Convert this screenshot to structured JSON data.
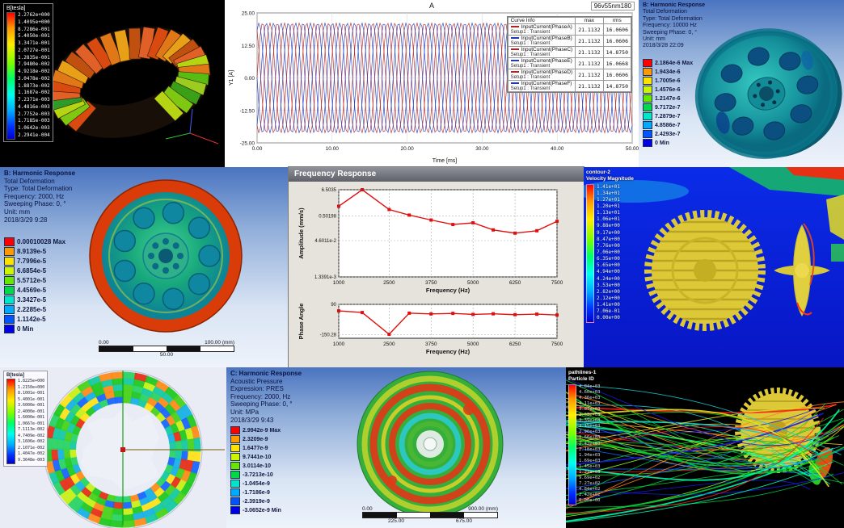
{
  "panels": {
    "torus_field": {
      "legend_title": "B[tesla]",
      "scale_values": [
        "2.2762e+000",
        "1.4095e+000",
        "8.7286e-001",
        "5.4050e-001",
        "3.3471e-001",
        "2.0727e-001",
        "1.2835e-001",
        "7.9480e-002",
        "4.9218e-002",
        "3.0478e-002",
        "1.8873e-002",
        "1.1687e-002",
        "7.2371e-003",
        "4.4816e-003",
        "2.7752e-003",
        "1.7185e-003",
        "1.0642e-003",
        "2.2941e-004"
      ]
    },
    "current_plot": {
      "title": "A",
      "corner_label": "96v55nm180",
      "ylabel": "Y1 [A]",
      "xlabel": "Time [ms]",
      "yticks": [
        "25.00",
        "12.50",
        "0.00",
        "-12.50",
        "-25.00"
      ],
      "xticks": [
        "0.00",
        "10.00",
        "20.00",
        "30.00",
        "40.00",
        "50.00"
      ],
      "legend_header": "Curve Info",
      "legend_cols": [
        "max",
        "rms"
      ],
      "series": [
        {
          "name": "InputCurrent(PhaseA)",
          "setup": "Setup1 : Transient",
          "max": "21.1132",
          "rms": "16.0606",
          "color": "#b22222"
        },
        {
          "name": "InputCurrent(PhaseB)",
          "setup": "Setup1 : Transient",
          "max": "21.1132",
          "rms": "16.0606",
          "color": "#1c39bb"
        },
        {
          "name": "InputCurrent(PhaseC)",
          "setup": "Setup1 : Transient",
          "max": "21.1132",
          "rms": "14.8750",
          "color": "#b22222"
        },
        {
          "name": "InputCurrent(PhaseE)",
          "setup": "Setup1 : Transient",
          "max": "21.1132",
          "rms": "16.0668",
          "color": "#1c39bb"
        },
        {
          "name": "InputCurrent(PhaseD)",
          "setup": "Setup1 : Transient",
          "max": "21.1132",
          "rms": "16.0606",
          "color": "#b22222"
        },
        {
          "name": "InputCurrent(PhaseF)",
          "setup": "Setup1 : Transient",
          "max": "21.1132",
          "rms": "14.8750",
          "color": "#1c39bb"
        }
      ],
      "chart_data": {
        "type": "line",
        "amplitude": 21.1132,
        "cycles": 17,
        "x_range_ms": [
          0,
          50
        ],
        "y_range": [
          -25,
          25
        ],
        "phase_step_deg": 60
      }
    },
    "harmonic_10000": {
      "header_lines": [
        "B: Harmonic Response",
        "Total Deformation",
        "Type: Total Deformation",
        "Frequency: 10000 Hz",
        "Sweeping Phase: 0, °",
        "Unit: mm",
        "2018/3/28 22:09"
      ],
      "legend": [
        {
          "color": "#ff0000",
          "label": "2.1864e-6 Max"
        },
        {
          "color": "#ff9900",
          "label": "1.9434e-6"
        },
        {
          "color": "#ffe100",
          "label": "1.7005e-6"
        },
        {
          "color": "#ccf500",
          "label": "1.4576e-6"
        },
        {
          "color": "#66e600",
          "label": "1.2147e-6"
        },
        {
          "color": "#00d948",
          "label": "9.7172e-7"
        },
        {
          "color": "#00e6c8",
          "label": "7.2879e-7"
        },
        {
          "color": "#00aaff",
          "label": "4.8586e-7"
        },
        {
          "color": "#0055ff",
          "label": "2.4293e-7"
        },
        {
          "color": "#0000e6",
          "label": "0 Min"
        }
      ]
    },
    "harmonic_2000": {
      "header_lines": [
        "B: Harmonic Response",
        "Total Deformation",
        "Type: Total Deformation",
        "Frequency: 2000, Hz",
        "Sweeping Phase: 0, °",
        "Unit: mm",
        "2018/3/29 9:28"
      ],
      "legend": [
        {
          "color": "#ff0000",
          "label": "0.00010028 Max"
        },
        {
          "color": "#ff9900",
          "label": "8.9139e-5"
        },
        {
          "color": "#ffe100",
          "label": "7.7996e-5"
        },
        {
          "color": "#ccf500",
          "label": "6.6854e-5"
        },
        {
          "color": "#66e600",
          "label": "5.5712e-5"
        },
        {
          "color": "#00d948",
          "label": "4.4569e-5"
        },
        {
          "color": "#00e6c8",
          "label": "3.3427e-5"
        },
        {
          "color": "#00aaff",
          "label": "2.2285e-5"
        },
        {
          "color": "#0055ff",
          "label": "1.1142e-5"
        },
        {
          "color": "#0000e6",
          "label": "0 Min"
        }
      ],
      "ruler": {
        "start": "0.00",
        "mid": "50.00",
        "end": "100.00 (mm)"
      }
    },
    "freq_response": {
      "window_title": "Frequency Response",
      "amplitude_chart": {
        "ylabel": "Amplitude (mm/s)",
        "xlabel": "Frequency (Hz)",
        "yticks": [
          "6.5035",
          "0.50198",
          "4.6011e-2",
          "1.3391e-3"
        ],
        "xticks": [
          "1000",
          "2500",
          "3750",
          "5000",
          "6250",
          "7500"
        ],
        "chart_data": {
          "type": "line",
          "color": "#e01010",
          "y_scale": "log",
          "x": [
            1000,
            1700,
            2500,
            3100,
            3750,
            4400,
            5000,
            5600,
            6250,
            6900,
            7500
          ],
          "y": [
            1.3,
            6.5,
            0.95,
            0.55,
            0.34,
            0.22,
            0.26,
            0.13,
            0.095,
            0.12,
            0.3
          ]
        }
      },
      "phase_chart": {
        "ylabel": "Phase Angle",
        "xlabel": "Frequency (Hz)",
        "yticks": [
          "90",
          "-150.28"
        ],
        "xticks": [
          "1000",
          "2500",
          "3750",
          "5000",
          "6250",
          "7500"
        ],
        "chart_data": {
          "type": "line",
          "color": "#e01010",
          "ylim": [
            -180,
            90
          ],
          "x": [
            1000,
            1700,
            2500,
            3100,
            3750,
            4400,
            5000,
            5600,
            6250,
            6900,
            7500
          ],
          "y": [
            38,
            25,
            -148,
            20,
            14,
            18,
            10,
            15,
            8,
            12,
            5
          ]
        }
      }
    },
    "cfd_velocity": {
      "legend_title_lines": [
        "contour-2",
        "Velocity Magnitude"
      ],
      "scale_values": [
        "1.41e+01",
        "1.34e+01",
        "1.27e+01",
        "1.20e+01",
        "1.13e+01",
        "1.06e+01",
        "9.88e+00",
        "9.17e+00",
        "8.47e+00",
        "7.76e+00",
        "7.06e+00",
        "6.35e+00",
        "5.65e+00",
        "4.94e+00",
        "4.24e+00",
        "3.53e+00",
        "2.82e+00",
        "2.12e+00",
        "1.41e+00",
        "7.06e-01",
        "0.00e+00"
      ]
    },
    "ring_field": {
      "legend_title": "B[tesla]",
      "scale_values": [
        "1.8225e+000",
        "1.2150e+000",
        "8.1001e-001",
        "5.4001e-001",
        "3.6000e-001",
        "2.4000e-001",
        "1.6000e-001",
        "1.0667e-001",
        "7.1113e-002",
        "4.7409e-002",
        "3.1606e-002",
        "2.1071e-002",
        "1.4047e-002",
        "9.3648e-003"
      ]
    },
    "acoustic": {
      "header_lines": [
        "C: Harmonic Response",
        "Acoustic Pressure",
        "Expression: PRES",
        "Frequency: 2000, Hz",
        "Sweeping Phase: 0, °",
        "Unit: MPa",
        "2018/3/29 9:43"
      ],
      "legend": [
        {
          "color": "#ff0000",
          "label": "2.9942e-9 Max"
        },
        {
          "color": "#ff9900",
          "label": "2.3209e-9"
        },
        {
          "color": "#ffe100",
          "label": "1.6477e-9"
        },
        {
          "color": "#ccf500",
          "label": "9.7441e-10"
        },
        {
          "color": "#66e600",
          "label": "3.0114e-10"
        },
        {
          "color": "#00d948",
          "label": "-3.7213e-10"
        },
        {
          "color": "#00e6c8",
          "label": "-1.0454e-9"
        },
        {
          "color": "#00aaff",
          "label": "-1.7186e-9"
        },
        {
          "color": "#0055ff",
          "label": "-2.3919e-9"
        },
        {
          "color": "#0000e6",
          "label": "-3.0652e-9 Min"
        }
      ],
      "ruler": {
        "start": "0.00",
        "q1": "225.00",
        "q3": "675.00",
        "end": "900.00 (mm)"
      }
    },
    "streamlines": {
      "legend_title_lines": [
        "pathlines-1",
        "Particle ID"
      ],
      "scale_values": [
        "4.84e+03",
        "4.60e+03",
        "4.36e+03",
        "4.11e+03",
        "3.87e+03",
        "3.63e+03",
        "3.39e+03",
        "3.15e+03",
        "2.90e+03",
        "2.66e+03",
        "2.42e+03",
        "2.18e+03",
        "1.94e+03",
        "1.69e+03",
        "1.45e+03",
        "1.21e+03",
        "9.69e+02",
        "7.27e+02",
        "4.84e+02",
        "2.42e+02",
        "0.00e+00"
      ],
      "stream_colors": [
        "#00c83c",
        "#19d119",
        "#96ff19",
        "#ffd519",
        "#ff7b19",
        "#ff1919",
        "#19c8d1",
        "#1964ff",
        "#1919e6",
        "#00ffb2",
        "#e6e619"
      ]
    }
  }
}
